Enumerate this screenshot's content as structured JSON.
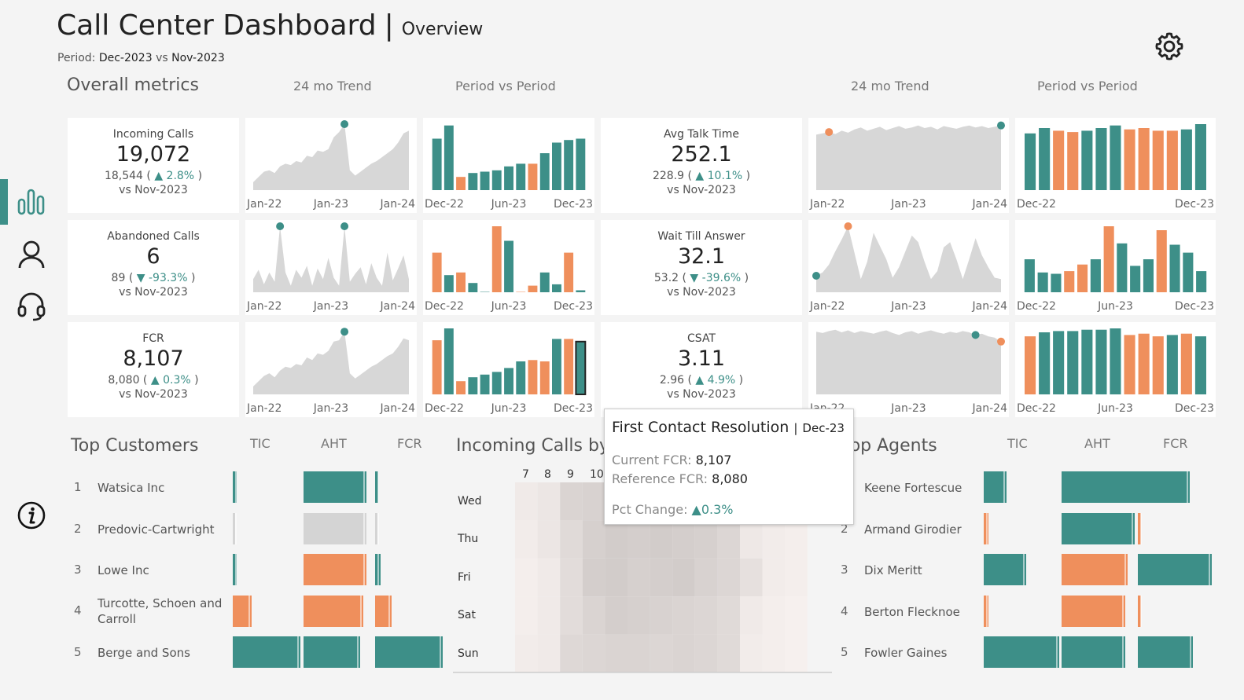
{
  "header": {
    "title": "Call Center Dashboard",
    "separator": "|",
    "subtitle": "Overview",
    "period_label": "Period:",
    "period_current": "Dec-2023",
    "period_vs": "vs",
    "period_prior": "Nov-2023"
  },
  "section_headers": {
    "overall": "Overall metrics",
    "trend_left": "24 mo Trend",
    "pvp_left": "Period vs Period",
    "trend_right": "24 mo Trend",
    "pvp_right": "Period vs Period",
    "top_customers": "Top Customers",
    "incoming_calls": "Incoming Calls by",
    "top_agents": "Top Agents"
  },
  "table_columns": {
    "tic": "TIC",
    "aht": "AHT",
    "fcr": "FCR"
  },
  "colors": {
    "teal": "#3d8f88",
    "orange": "#ef8f5c",
    "gray": "#d4d4d4",
    "area": "#d7d7d7",
    "background": "#f4f4f4"
  },
  "icons": {
    "settings": "gear-icon",
    "nav_overview": "bar-chart-icon",
    "nav_agent": "person-icon",
    "nav_support": "headset-icon",
    "info": "info-icon"
  },
  "kpis": [
    {
      "name": "Incoming Calls",
      "value": "19,072",
      "ref": "18,544",
      "change": "2.8%",
      "dir": "▲",
      "vs": "vs Nov-2023"
    },
    {
      "name": "Abandoned Calls",
      "value": "6",
      "ref": "89",
      "change": "-93.3%",
      "dir": "▼",
      "vs": "vs Nov-2023"
    },
    {
      "name": "FCR",
      "value": "8,107",
      "ref": "8,080",
      "change": "0.3%",
      "dir": "▲",
      "vs": "vs Nov-2023"
    },
    {
      "name": "Avg Talk Time",
      "value": "252.1",
      "ref": "228.9",
      "change": "10.1%",
      "dir": "▲",
      "vs": "vs Nov-2023"
    },
    {
      "name": "Wait Till Answer",
      "value": "32.1",
      "ref": "53.2",
      "change": "-39.6%",
      "dir": "▼",
      "vs": "vs Nov-2023"
    },
    {
      "name": "CSAT",
      "value": "3.11",
      "ref": "2.96",
      "change": "4.9%",
      "dir": "▲",
      "vs": "vs Nov-2023"
    }
  ],
  "chart_data": [
    {
      "type": "area",
      "metric": "Incoming Calls",
      "period": "24 mo Trend",
      "xticks": [
        "Jan-22",
        "Jan-23",
        "Jan-24"
      ],
      "values": [
        0.12,
        0.2,
        0.28,
        0.3,
        0.26,
        0.36,
        0.4,
        0.38,
        0.44,
        0.42,
        0.52,
        0.5,
        0.6,
        0.58,
        0.62,
        0.8,
        0.88,
        1.0,
        0.3,
        0.22,
        0.28,
        0.34,
        0.4,
        0.44,
        0.5,
        0.56,
        0.62,
        0.72,
        0.86,
        0.9
      ],
      "marker": {
        "index": 17,
        "color": "#3d8f88"
      }
    },
    {
      "type": "bar",
      "metric": "Incoming Calls",
      "period": "Period vs Period",
      "xticks": [
        "Dec-22",
        "Jun-23",
        "Dec-23"
      ],
      "values": [
        0.78,
        0.98,
        0.2,
        0.26,
        0.28,
        0.3,
        0.36,
        0.4,
        0.4,
        0.56,
        0.72,
        0.76,
        0.78
      ],
      "colors": [
        "t",
        "t",
        "o",
        "t",
        "t",
        "t",
        "t",
        "t",
        "o",
        "t",
        "t",
        "t",
        "t"
      ]
    },
    {
      "type": "area",
      "metric": "Abandoned Calls",
      "period": "24 mo Trend",
      "xticks": [
        "Jan-22",
        "Jan-23",
        "Jan-24"
      ],
      "values": [
        0.2,
        0.34,
        0.12,
        0.3,
        0.16,
        1.0,
        0.3,
        0.1,
        0.34,
        0.22,
        0.4,
        0.1,
        0.36,
        0.2,
        0.52,
        0.22,
        0.1,
        1.0,
        0.16,
        0.28,
        0.38,
        0.12,
        0.44,
        0.22,
        0.1,
        0.6,
        0.18,
        0.36,
        0.56,
        0.2
      ],
      "marker": [
        {
          "index": 5,
          "color": "#3d8f88"
        },
        {
          "index": 17,
          "color": "#3d8f88"
        }
      ]
    },
    {
      "type": "bar",
      "metric": "Abandoned Calls",
      "period": "Period vs Period",
      "xticks": [
        "Dec-22",
        "Jun-23",
        "Dec-23"
      ],
      "values": [
        0.6,
        0.26,
        0.3,
        0.14,
        0.0,
        1.0,
        0.78,
        0.0,
        0.1,
        0.3,
        0.12,
        0.6,
        0.03
      ],
      "colors": [
        "o",
        "t",
        "o",
        "t",
        "t",
        "o",
        "t",
        "o",
        "o",
        "t",
        "t",
        "o",
        "t"
      ]
    },
    {
      "type": "area",
      "metric": "FCR",
      "period": "24 mo Trend",
      "xticks": [
        "Jan-22",
        "Jan-23",
        "Jan-24"
      ],
      "values": [
        0.12,
        0.2,
        0.28,
        0.32,
        0.26,
        0.36,
        0.42,
        0.4,
        0.46,
        0.44,
        0.56,
        0.52,
        0.62,
        0.6,
        0.66,
        0.8,
        0.82,
        0.95,
        0.32,
        0.24,
        0.3,
        0.36,
        0.42,
        0.46,
        0.52,
        0.58,
        0.62,
        0.72,
        0.85,
        0.82
      ],
      "marker": {
        "index": 17,
        "color": "#3d8f88"
      }
    },
    {
      "type": "bar",
      "metric": "FCR",
      "period": "Period vs Period",
      "xticks": [
        "Dec-22",
        "Jun-23",
        "Dec-23"
      ],
      "values": [
        0.82,
        1.0,
        0.2,
        0.26,
        0.3,
        0.34,
        0.4,
        0.5,
        0.52,
        0.5,
        0.84,
        0.84,
        0.8
      ],
      "colors": [
        "o",
        "t",
        "o",
        "t",
        "t",
        "t",
        "t",
        "t",
        "o",
        "o",
        "t",
        "o",
        "t"
      ],
      "highlight": 12
    },
    {
      "type": "area",
      "metric": "Avg Talk Time",
      "period": "24 mo Trend",
      "xticks": [
        "Jan-22",
        "Jan-23",
        "Jan-24"
      ],
      "values": [
        0.84,
        0.86,
        0.88,
        0.85,
        0.9,
        0.87,
        0.92,
        0.95,
        0.9,
        0.93,
        0.96,
        0.91,
        0.94,
        0.97,
        0.93,
        0.95,
        0.98,
        0.94,
        0.96,
        0.92,
        0.97,
        0.95,
        0.93,
        0.96,
        0.98,
        0.95,
        0.97,
        0.94,
        0.96,
        0.98
      ],
      "marker": [
        {
          "index": 2,
          "color": "#ef8f5c"
        },
        {
          "index": 29,
          "color": "#3d8f88"
        }
      ]
    },
    {
      "type": "bar",
      "metric": "Avg Talk Time",
      "period": "Period vs Period",
      "xticks": [
        "Dec-22",
        "Dec-23"
      ],
      "values": [
        0.86,
        0.94,
        0.9,
        0.88,
        0.9,
        0.94,
        0.98,
        0.92,
        0.94,
        0.9,
        0.9,
        0.92,
        1.0
      ],
      "colors": [
        "t",
        "t",
        "o",
        "o",
        "t",
        "t",
        "t",
        "o",
        "o",
        "o",
        "o",
        "t",
        "t"
      ]
    },
    {
      "type": "area",
      "metric": "Wait Till Answer",
      "period": "24 mo Trend",
      "xticks": [
        "Jan-22",
        "Jan-23",
        "Jan-24"
      ],
      "values": [
        0.25,
        0.3,
        0.42,
        0.62,
        0.8,
        1.0,
        0.6,
        0.2,
        0.46,
        0.9,
        0.7,
        0.5,
        0.22,
        0.38,
        0.62,
        0.86,
        0.76,
        0.46,
        0.2,
        0.32,
        0.68,
        0.76,
        0.5,
        0.2,
        0.5,
        0.82,
        0.56,
        0.38,
        0.22,
        0.2
      ],
      "marker": [
        {
          "index": 0,
          "color": "#3d8f88"
        },
        {
          "index": 5,
          "color": "#ef8f5c"
        }
      ]
    },
    {
      "type": "bar",
      "metric": "Wait Till Answer",
      "period": "Period vs Period",
      "xticks": [
        "Dec-22",
        "Jun-23",
        "Dec-23"
      ],
      "values": [
        0.5,
        0.3,
        0.28,
        0.32,
        0.42,
        0.5,
        1.0,
        0.74,
        0.4,
        0.5,
        0.94,
        0.72,
        0.6,
        0.32
      ],
      "colors": [
        "t",
        "t",
        "t",
        "o",
        "o",
        "t",
        "o",
        "t",
        "t",
        "t",
        "o",
        "t",
        "t",
        "t"
      ]
    },
    {
      "type": "area",
      "metric": "CSAT",
      "period": "24 mo Trend",
      "xticks": [
        "Jan-22",
        "Jan-23",
        "Jan-24"
      ],
      "values": [
        0.95,
        0.93,
        0.96,
        0.98,
        0.94,
        0.97,
        0.93,
        0.96,
        0.94,
        0.92,
        0.95,
        0.97,
        0.93,
        0.9,
        0.94,
        0.96,
        0.92,
        0.95,
        0.97,
        0.94,
        0.92,
        0.95,
        0.93,
        0.96,
        0.94,
        0.9,
        0.92,
        0.88,
        0.86,
        0.8
      ],
      "marker": [
        {
          "index": 25,
          "color": "#3d8f88"
        },
        {
          "index": 29,
          "color": "#ef8f5c"
        }
      ]
    },
    {
      "type": "bar",
      "metric": "CSAT",
      "period": "Period vs Period",
      "xticks": [
        "Dec-22",
        "Jun-23",
        "Dec-23"
      ],
      "values": [
        0.88,
        0.94,
        0.96,
        0.96,
        0.98,
        0.98,
        1.0,
        0.9,
        0.92,
        0.88,
        0.9,
        0.92,
        0.88
      ],
      "colors": [
        "o",
        "t",
        "t",
        "t",
        "t",
        "t",
        "t",
        "o",
        "o",
        "o",
        "t",
        "o",
        "t"
      ]
    }
  ],
  "top_customers": [
    {
      "rank": "1",
      "name": "Watsica Inc",
      "tic": 0.06,
      "aht": 0.8,
      "fcr": 0.05,
      "tic_c": "t",
      "aht_c": "t",
      "fcr_c": "t"
    },
    {
      "rank": "2",
      "name": "Predovic-Cartwright",
      "tic": 0.03,
      "aht": 0.8,
      "fcr": 0.02,
      "tic_c": "g",
      "aht_c": "g",
      "fcr_c": "g"
    },
    {
      "rank": "3",
      "name": "Lowe Inc",
      "tic": 0.06,
      "aht": 0.8,
      "fcr": 0.08,
      "tic_c": "t",
      "aht_c": "o",
      "fcr_c": "t"
    },
    {
      "rank": "4",
      "name": "Turcotte, Schoen and Carroll",
      "tic": 0.28,
      "aht": 0.76,
      "fcr": 0.24,
      "tic_c": "o",
      "aht_c": "o",
      "fcr_c": "o"
    },
    {
      "rank": "5",
      "name": "Berge and Sons",
      "tic": 1.0,
      "aht": 0.72,
      "fcr": 1.0,
      "tic_c": "t",
      "aht_c": "t",
      "fcr_c": "t"
    }
  ],
  "top_agents": [
    {
      "rank": "1",
      "name": "Keene Fortescue",
      "tic": 0.3,
      "aht": 0.94,
      "fcr": 0.7,
      "tic_c": "t",
      "aht_c": "t",
      "fcr_c": "t"
    },
    {
      "rank": "2",
      "name": "Armand Girodier",
      "tic": 0.06,
      "aht": 0.8,
      "fcr": 0.04,
      "tic_c": "o",
      "aht_c": "t",
      "fcr_c": "o"
    },
    {
      "rank": "3",
      "name": "Dix Meritt",
      "tic": 0.56,
      "aht": 0.72,
      "fcr": 1.0,
      "tic_c": "t",
      "aht_c": "o",
      "fcr_c": "t"
    },
    {
      "rank": "4",
      "name": "Berton Flecknoe",
      "tic": 0.06,
      "aht": 0.7,
      "fcr": 0.04,
      "tic_c": "o",
      "aht_c": "o",
      "fcr_c": "o"
    },
    {
      "rank": "5",
      "name": "Fowler Gaines",
      "tic": 1.0,
      "aht": 0.7,
      "fcr": 0.74,
      "tic_c": "t",
      "aht_c": "t",
      "fcr_c": "t"
    }
  ],
  "heatmap": {
    "hours": [
      "7",
      "8",
      "9",
      "10"
    ],
    "days": [
      "Wed",
      "Thu",
      "Fri",
      "Sat",
      "Sun"
    ]
  },
  "tooltip": {
    "title": "First Contact Resolution",
    "sep": "|",
    "period": "Dec-23",
    "current_label": "Current FCR:",
    "current": "8,107",
    "ref_label": "Reference FCR:",
    "ref": "8,080",
    "pct_label": "Pct Change:",
    "pct_dir": "▲",
    "pct": "0.3%"
  }
}
